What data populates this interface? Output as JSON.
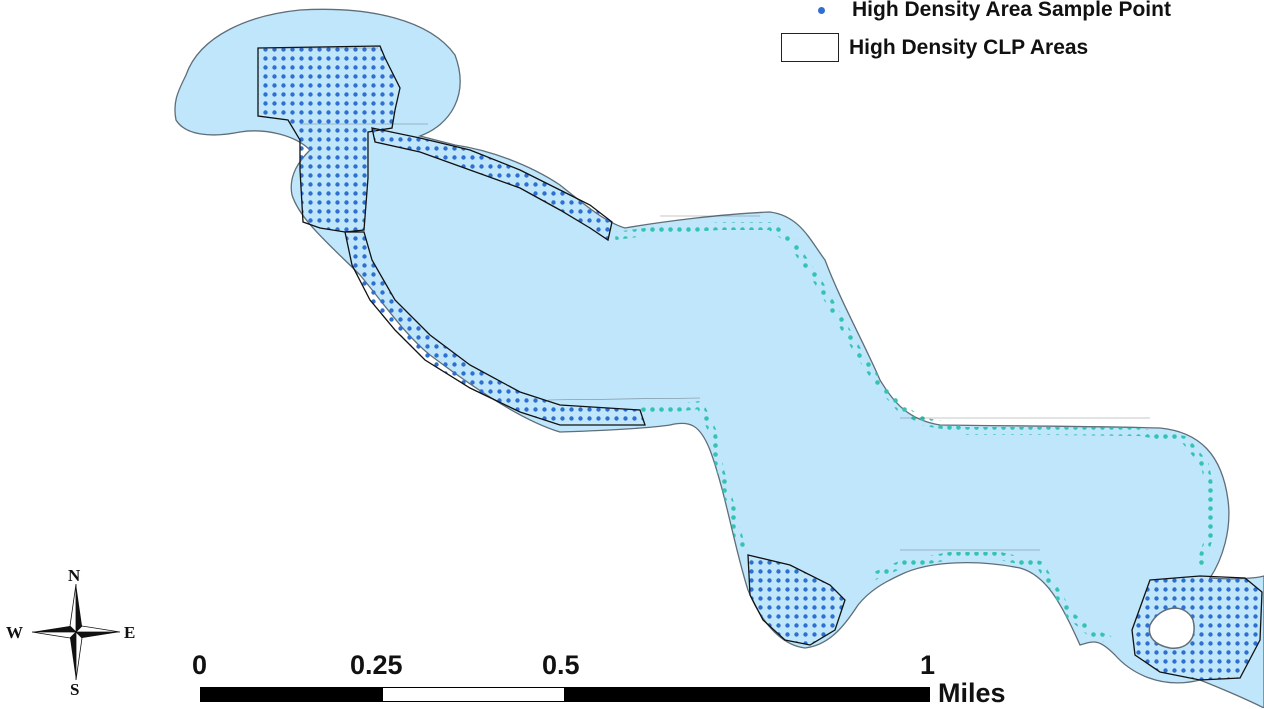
{
  "legend": {
    "sample_point_label": "High Density Area Sample Point",
    "clp_areas_label": "High Density CLP Areas"
  },
  "compass": {
    "n": "N",
    "s": "S",
    "e": "E",
    "w": "W"
  },
  "scale_bar": {
    "ticks": [
      "0",
      "0.25",
      "0.5",
      "1"
    ],
    "units": "Miles"
  },
  "colors": {
    "water": "#bfe6fb",
    "shore": "#5f6e78",
    "sample_point_blue": "#2f6fd0",
    "sample_point_teal": "#34c3b0",
    "clp_outline": "#111111",
    "island": "#ffffff"
  }
}
